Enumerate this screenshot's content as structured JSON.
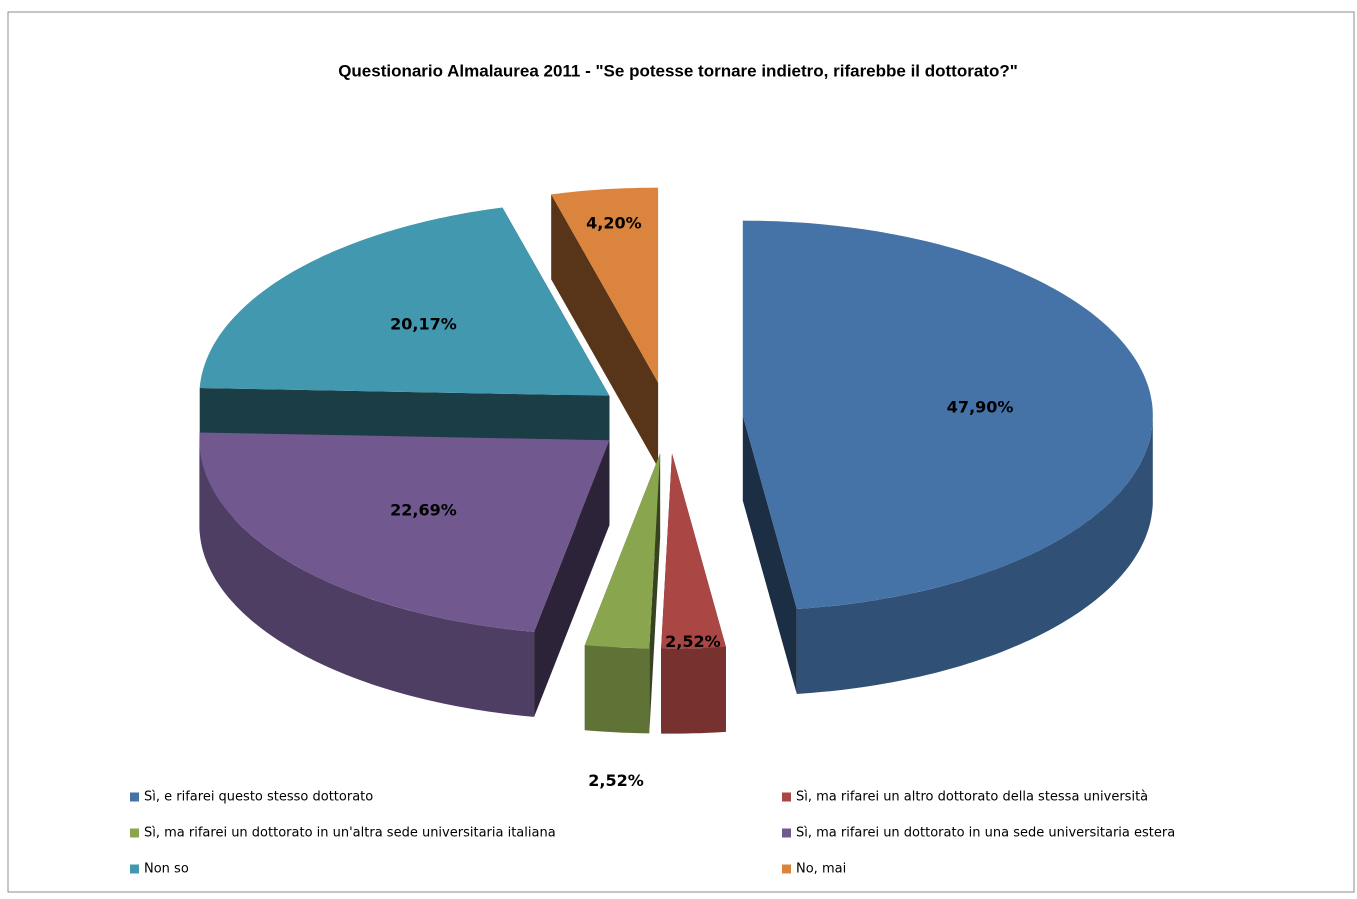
{
  "chart_data": {
    "type": "pie",
    "title": "Questionario Almalaurea 2011 -  \"Se potesse tornare indietro, rifarebbe il dottorato?\"",
    "categories": [
      "Sì, e rifarei questo stesso dottorato",
      "Sì, ma rifarei un altro dottorato della stessa università",
      "Sì, ma rifarei un dottorato in un'altra sede universitaria italiana",
      "Sì, ma rifarei un dottorato in una sede universitaria estera",
      "Non so",
      "No, mai"
    ],
    "values": [
      47.9,
      2.52,
      2.52,
      22.69,
      20.17,
      4.2
    ],
    "value_labels": [
      "47,90%",
      "2,52%",
      "2,52%",
      "22,69%",
      "20,17%",
      "4,20%"
    ],
    "colors": [
      "#4572a7",
      "#aa4643",
      "#89a54e",
      "#71588f",
      "#4198af",
      "#db843d"
    ],
    "legend": "bottom"
  }
}
